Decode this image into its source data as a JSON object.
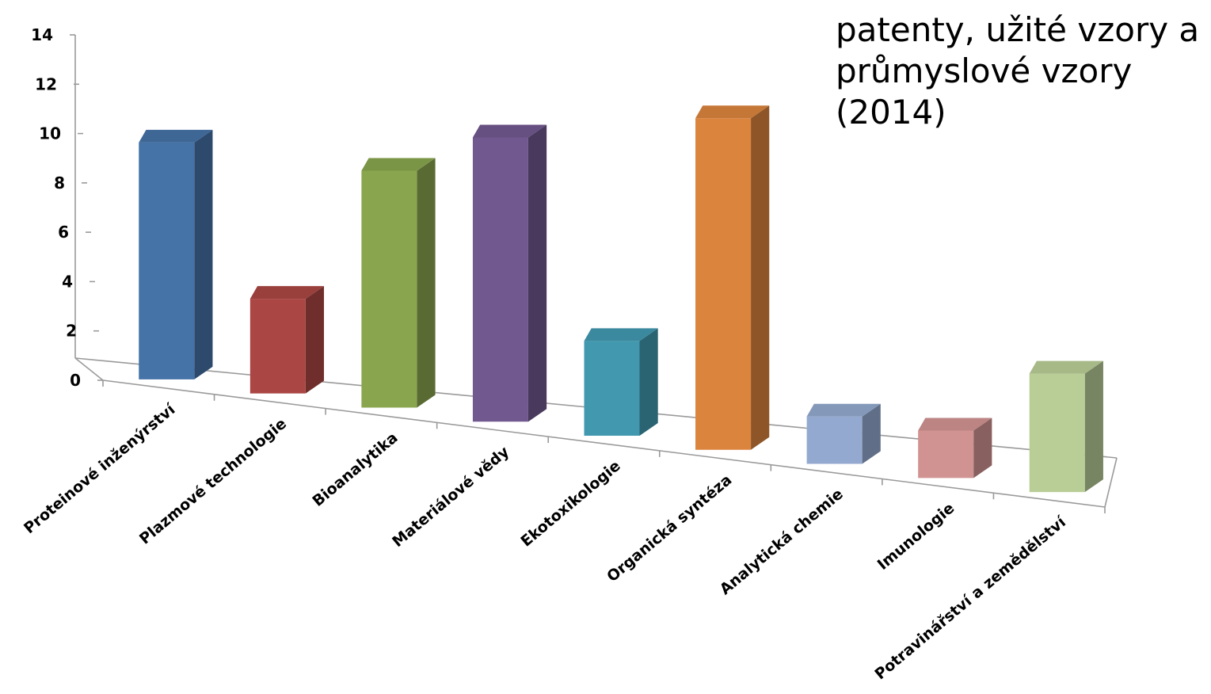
{
  "chart_data": {
    "type": "bar",
    "title": "patenty, užité vzory a\nprůmyslové vzory (2014)",
    "categories": [
      "Proteinové inženýrství",
      "Plazmové technologie",
      "Bioanalytika",
      "Materiálové vědy",
      "Ekotoxikologie",
      "Organická syntéza",
      "Analytická chemie",
      "Imunologie",
      "Potravinářství a zemědělství"
    ],
    "values": [
      10,
      4,
      10,
      12,
      4,
      14,
      2,
      2,
      5
    ],
    "colors": [
      "#4572A7",
      "#AA4643",
      "#89A54E",
      "#71588F",
      "#4198AF",
      "#DB843D",
      "#93A9CF",
      "#D19392",
      "#B9CD96"
    ],
    "ylim": [
      0,
      14
    ],
    "yticks": [
      0,
      2,
      4,
      6,
      8,
      10,
      12,
      14
    ],
    "xlabel": "",
    "ylabel": "",
    "grid": false,
    "legend": "none",
    "style": "3d-column"
  }
}
